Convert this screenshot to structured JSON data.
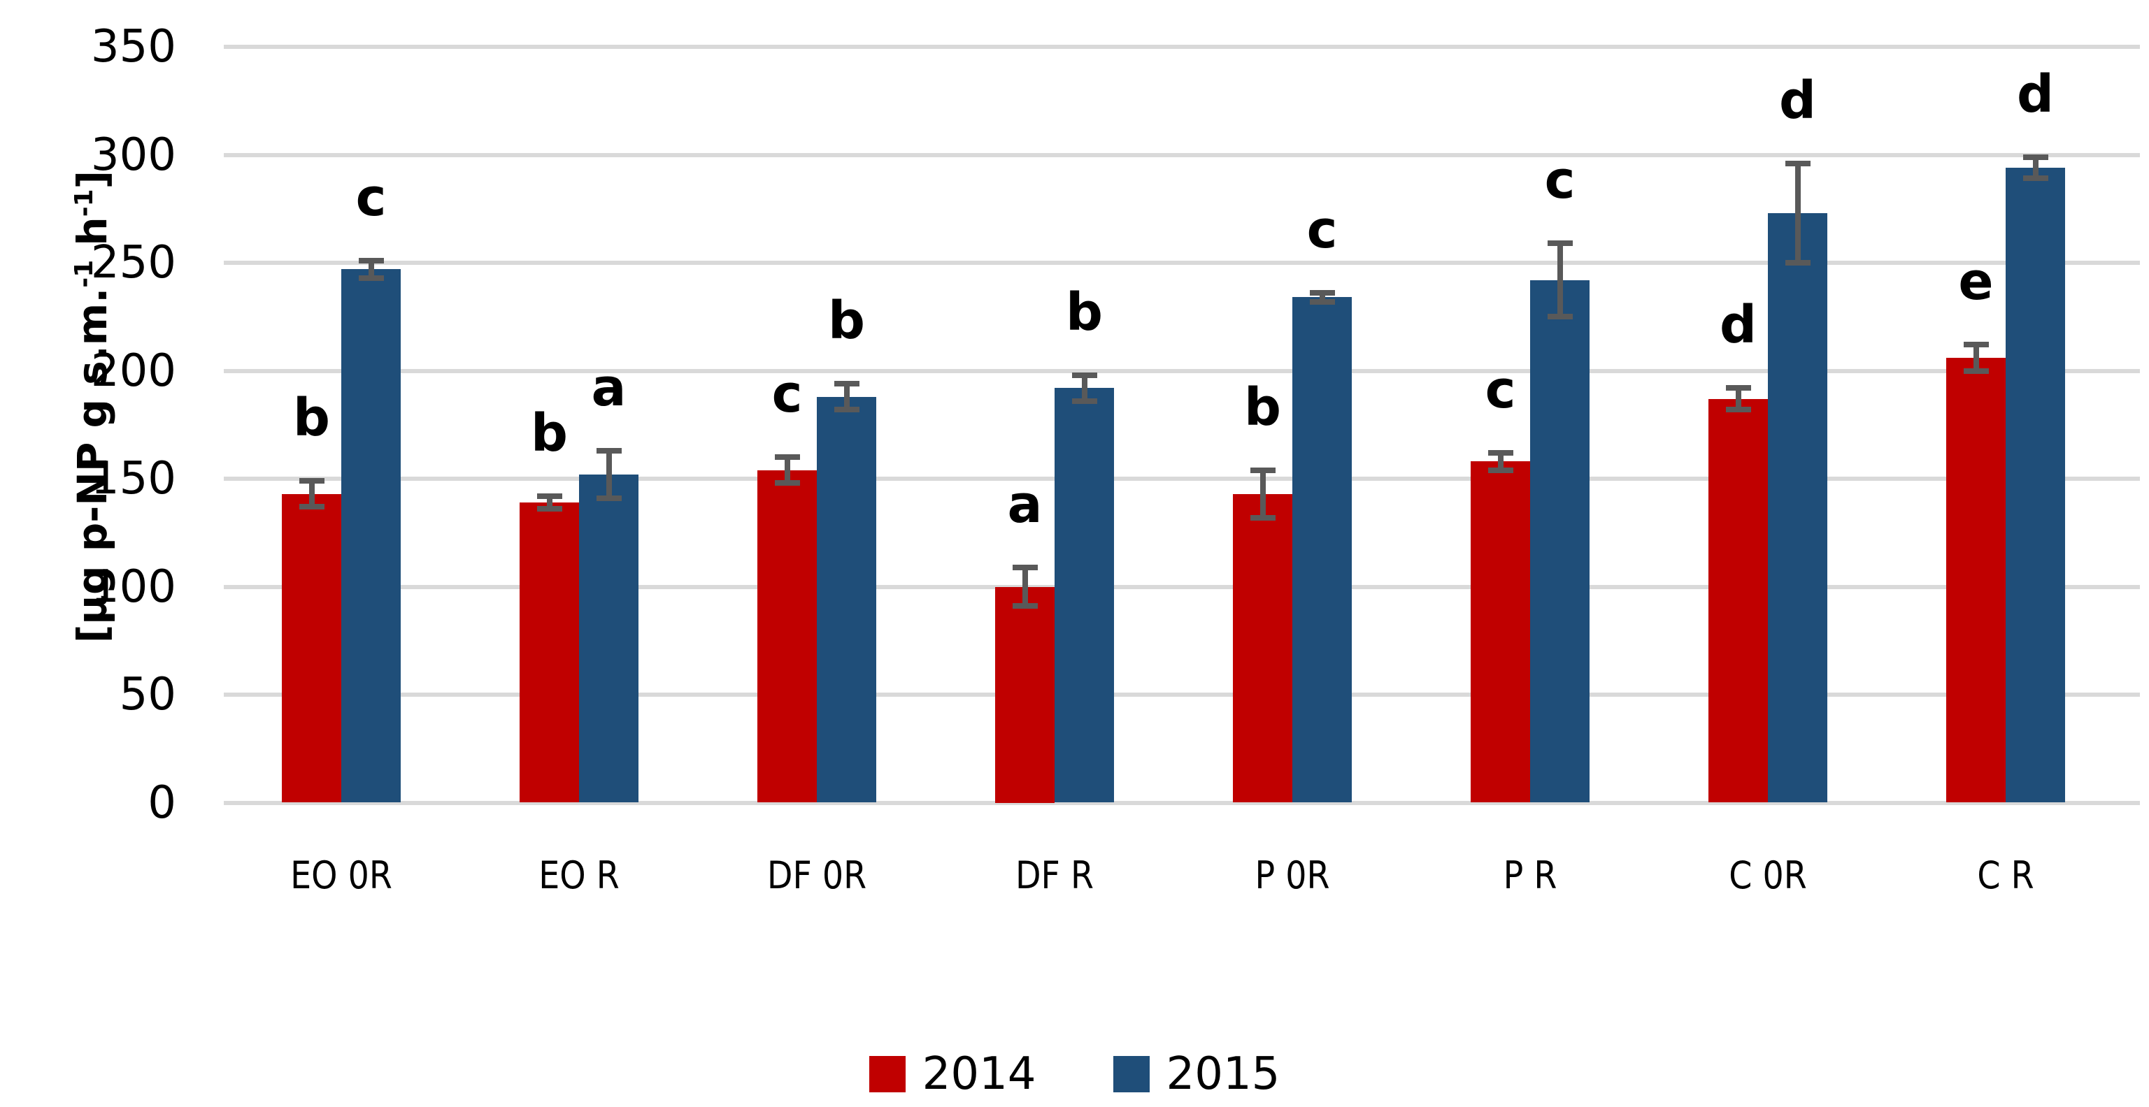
{
  "chart_data": {
    "type": "bar",
    "title": "",
    "ylabel_text": "[µg p-NP g s.m.⁻¹ h⁻¹]",
    "ylabel_segments": [
      {
        "t": "[µg p-NP g s.m."
      },
      {
        "t": "-1",
        "sup": true
      },
      {
        "t": " h"
      },
      {
        "t": "-1",
        "sup": true
      },
      {
        "t": "]"
      }
    ],
    "xlabel": "",
    "ylim": [
      0,
      350
    ],
    "yticks": [
      0,
      50,
      100,
      150,
      200,
      250,
      300,
      350
    ],
    "grid": "horizontal",
    "gridline_color": "#D9D9D9",
    "error_bar_color": "#595959",
    "legend_position": "bottom",
    "categories": [
      "EO 0R",
      "EO R",
      "DF 0R",
      "DF R",
      "P 0R",
      "P R",
      "C 0R",
      "C R"
    ],
    "series": [
      {
        "name": "2014",
        "color": "#C00000",
        "values": [
          143,
          139,
          154,
          100,
          143,
          158,
          187,
          206
        ],
        "errors": [
          6,
          3,
          6,
          9,
          11,
          4,
          5,
          6
        ],
        "letters": [
          "b",
          "b",
          "c",
          "a",
          "b",
          "c",
          "d",
          "e"
        ]
      },
      {
        "name": "2015",
        "color": "#1F4E79",
        "values": [
          247,
          152,
          188,
          192,
          234,
          242,
          273,
          294
        ],
        "errors": [
          4,
          11,
          6,
          6,
          2,
          17,
          23,
          5
        ],
        "letters": [
          "c",
          "a",
          "b",
          "b",
          "c",
          "c",
          "d",
          "d"
        ]
      }
    ]
  }
}
